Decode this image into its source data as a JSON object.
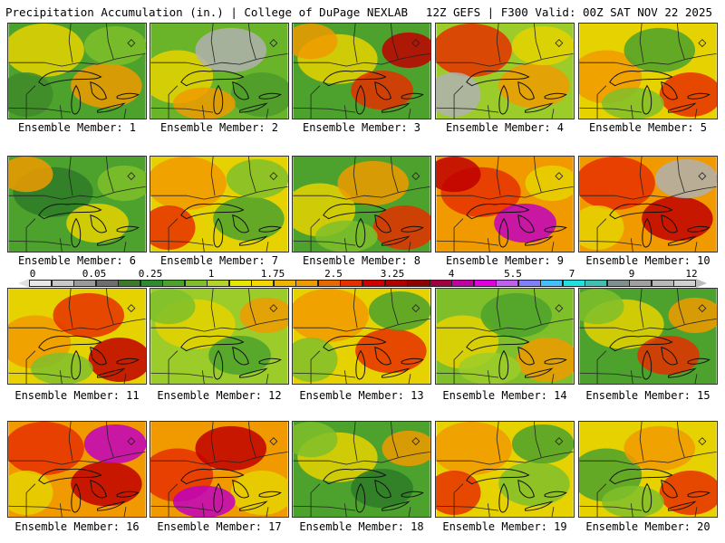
{
  "header": {
    "left_title": "Precipitation Accumulation (in.) | College of DuPage NEXLAB",
    "right_title": "12Z GEFS | F300 Valid: 00Z SAT NOV 22 2025"
  },
  "panel_label_prefix": "Ensemble Member:",
  "members": [
    {
      "label": "Ensemble Member: 1",
      "base": "#4ca22c",
      "blobs": [
        "#e6d200",
        "#f09a00",
        "#3f8a2a",
        "#7fbf2a"
      ]
    },
    {
      "label": "Ensemble Member: 2",
      "base": "#6ab42a",
      "blobs": [
        "#e6d200",
        "#b0b0b0",
        "#4c9a2a",
        "#f09a00"
      ]
    },
    {
      "label": "Ensemble Member: 3",
      "base": "#4ca22c",
      "blobs": [
        "#e6d200",
        "#e53000",
        "#c00000",
        "#f09a00"
      ]
    },
    {
      "label": "Ensemble Member: 4",
      "base": "#9ccc2a",
      "blobs": [
        "#e53000",
        "#f09a00",
        "#b0b0b0",
        "#e6d200"
      ]
    },
    {
      "label": "Ensemble Member: 5",
      "base": "#e6d200",
      "blobs": [
        "#f09a00",
        "#4ca22c",
        "#e53000",
        "#7fbf2a"
      ]
    },
    {
      "label": "Ensemble Member: 6",
      "base": "#4ca22c",
      "blobs": [
        "#2e7a28",
        "#e6d200",
        "#7fbf2a",
        "#f09a00"
      ]
    },
    {
      "label": "Ensemble Member: 7",
      "base": "#e6d200",
      "blobs": [
        "#f09a00",
        "#4ca22c",
        "#e53000",
        "#7fbf2a"
      ]
    },
    {
      "label": "Ensemble Member: 8",
      "base": "#4ca22c",
      "blobs": [
        "#e6d200",
        "#f09a00",
        "#e53000",
        "#7fbf2a"
      ]
    },
    {
      "label": "Ensemble Member: 9",
      "base": "#f09a00",
      "blobs": [
        "#e53000",
        "#c000c0",
        "#e6d200",
        "#c00000"
      ]
    },
    {
      "label": "Ensemble Member: 10",
      "base": "#f09a00",
      "blobs": [
        "#e53000",
        "#c00000",
        "#e6d200",
        "#b0b0b0"
      ]
    },
    {
      "label": "Ensemble Member: 11",
      "base": "#e6d200",
      "blobs": [
        "#f09a00",
        "#e53000",
        "#c00000",
        "#7fbf2a"
      ]
    },
    {
      "label": "Ensemble Member: 12",
      "base": "#9ccc2a",
      "blobs": [
        "#e6d200",
        "#4ca22c",
        "#f09a00",
        "#7fbf2a"
      ]
    },
    {
      "label": "Ensemble Member: 13",
      "base": "#e6d200",
      "blobs": [
        "#f09a00",
        "#e53000",
        "#7fbf2a",
        "#4ca22c"
      ]
    },
    {
      "label": "Ensemble Member: 14",
      "base": "#7fbf2a",
      "blobs": [
        "#e6d200",
        "#4ca22c",
        "#f09a00",
        "#9ccc2a"
      ]
    },
    {
      "label": "Ensemble Member: 15",
      "base": "#4ca22c",
      "blobs": [
        "#e6d200",
        "#e53000",
        "#f09a00",
        "#7fbf2a"
      ]
    },
    {
      "label": "Ensemble Member: 16",
      "base": "#f09a00",
      "blobs": [
        "#e53000",
        "#c00000",
        "#e6d200",
        "#c000c0"
      ]
    },
    {
      "label": "Ensemble Member: 17",
      "base": "#f09a00",
      "blobs": [
        "#e53000",
        "#c00000",
        "#e6d200",
        "#c000c0"
      ]
    },
    {
      "label": "Ensemble Member: 18",
      "base": "#4ca22c",
      "blobs": [
        "#e6d200",
        "#2e7a28",
        "#f09a00",
        "#7fbf2a"
      ]
    },
    {
      "label": "Ensemble Member: 19",
      "base": "#e6d200",
      "blobs": [
        "#f09a00",
        "#7fbf2a",
        "#e53000",
        "#4ca22c"
      ]
    },
    {
      "label": "Ensemble Member: 20",
      "base": "#e6d200",
      "blobs": [
        "#4ca22c",
        "#f09a00",
        "#e53000",
        "#7fbf2a"
      ]
    }
  ],
  "colorbar": {
    "tick_labels": [
      "0",
      "0.05",
      "0.25",
      "1",
      "1.75",
      "2.5",
      "3.25",
      "4",
      "5.5",
      "7",
      "9",
      "12"
    ],
    "colors": [
      "#e8e8e8",
      "#c8c8c8",
      "#9a9a9a",
      "#6e6e6e",
      "#3a7a2a",
      "#2e8b2e",
      "#4ca22c",
      "#7fbf2a",
      "#b4d42a",
      "#e6e600",
      "#f5d800",
      "#f0b400",
      "#f09a00",
      "#e66a00",
      "#e53000",
      "#d00000",
      "#b00000",
      "#900000",
      "#a00040",
      "#c000a0",
      "#e000e0",
      "#c060f0",
      "#8080ff",
      "#40c0ff",
      "#20e0e0",
      "#40c0b0",
      "#809090",
      "#a0a0a0",
      "#b8b8b8",
      "#d0d0d0"
    ]
  }
}
